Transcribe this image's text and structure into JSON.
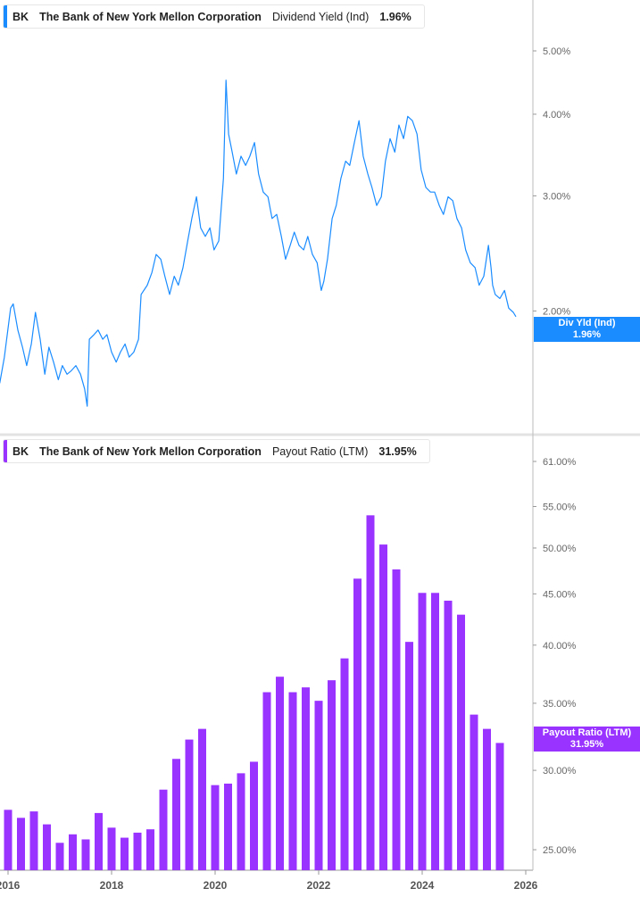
{
  "top_legend": {
    "ticker": "BK",
    "company": "The Bank of New York Mellon Corporation",
    "metric": "Dividend Yield (Ind)",
    "value": "1.96%"
  },
  "top_badge": {
    "label": "Div Yld (Ind)",
    "value": "1.96%"
  },
  "bottom_legend": {
    "ticker": "BK",
    "company": "The Bank of New York Mellon Corporation",
    "metric": "Payout Ratio (LTM)",
    "value": "31.95%"
  },
  "bottom_badge": {
    "label": "Payout Ratio (LTM)",
    "value": "31.95%"
  },
  "colors": {
    "yield": "#1a8cff",
    "payout": "#9933ff"
  },
  "chart_data": [
    {
      "type": "line",
      "title": "Dividend Yield (Ind)",
      "yscale": "log",
      "ylim": [
        1.35,
        5.5
      ],
      "yticks": [
        "5.00%",
        "4.00%",
        "3.00%",
        "2.00%"
      ],
      "ytick_values": [
        5,
        4,
        3,
        2
      ],
      "grid": false,
      "legend": "top-left",
      "points": [
        [
          2015.84,
          1.55
        ],
        [
          2015.93,
          1.7
        ],
        [
          2016.05,
          2.02
        ],
        [
          2016.1,
          2.05
        ],
        [
          2016.19,
          1.87
        ],
        [
          2016.28,
          1.76
        ],
        [
          2016.36,
          1.65
        ],
        [
          2016.45,
          1.78
        ],
        [
          2016.53,
          1.99
        ],
        [
          2016.62,
          1.81
        ],
        [
          2016.71,
          1.6
        ],
        [
          2016.79,
          1.76
        ],
        [
          2016.88,
          1.67
        ],
        [
          2016.97,
          1.57
        ],
        [
          2017.05,
          1.65
        ],
        [
          2017.14,
          1.6
        ],
        [
          2017.22,
          1.62
        ],
        [
          2017.31,
          1.65
        ],
        [
          2017.4,
          1.6
        ],
        [
          2017.48,
          1.52
        ],
        [
          2017.53,
          1.43
        ],
        [
          2017.57,
          1.81
        ],
        [
          2017.66,
          1.84
        ],
        [
          2017.74,
          1.87
        ],
        [
          2017.83,
          1.81
        ],
        [
          2017.91,
          1.84
        ],
        [
          2018.0,
          1.73
        ],
        [
          2018.09,
          1.67
        ],
        [
          2018.17,
          1.73
        ],
        [
          2018.26,
          1.78
        ],
        [
          2018.34,
          1.7
        ],
        [
          2018.43,
          1.73
        ],
        [
          2018.52,
          1.81
        ],
        [
          2018.57,
          2.12
        ],
        [
          2018.69,
          2.19
        ],
        [
          2018.78,
          2.29
        ],
        [
          2018.86,
          2.44
        ],
        [
          2018.95,
          2.4
        ],
        [
          2019.03,
          2.26
        ],
        [
          2019.12,
          2.12
        ],
        [
          2019.21,
          2.26
        ],
        [
          2019.29,
          2.19
        ],
        [
          2019.38,
          2.33
        ],
        [
          2019.47,
          2.56
        ],
        [
          2019.55,
          2.77
        ],
        [
          2019.64,
          2.99
        ],
        [
          2019.72,
          2.68
        ],
        [
          2019.81,
          2.6
        ],
        [
          2019.9,
          2.68
        ],
        [
          2019.98,
          2.48
        ],
        [
          2020.07,
          2.56
        ],
        [
          2020.16,
          3.19
        ],
        [
          2020.21,
          4.51
        ],
        [
          2020.26,
          3.73
        ],
        [
          2020.33,
          3.5
        ],
        [
          2020.41,
          3.24
        ],
        [
          2020.5,
          3.45
        ],
        [
          2020.59,
          3.34
        ],
        [
          2020.67,
          3.45
        ],
        [
          2020.76,
          3.62
        ],
        [
          2020.84,
          3.24
        ],
        [
          2020.93,
          3.04
        ],
        [
          2021.02,
          2.99
        ],
        [
          2021.1,
          2.77
        ],
        [
          2021.19,
          2.81
        ],
        [
          2021.28,
          2.6
        ],
        [
          2021.36,
          2.4
        ],
        [
          2021.45,
          2.52
        ],
        [
          2021.53,
          2.64
        ],
        [
          2021.62,
          2.52
        ],
        [
          2021.71,
          2.48
        ],
        [
          2021.79,
          2.6
        ],
        [
          2021.88,
          2.44
        ],
        [
          2021.97,
          2.37
        ],
        [
          2022.05,
          2.15
        ],
        [
          2022.1,
          2.22
        ],
        [
          2022.17,
          2.4
        ],
        [
          2022.26,
          2.77
        ],
        [
          2022.34,
          2.9
        ],
        [
          2022.43,
          3.19
        ],
        [
          2022.52,
          3.39
        ],
        [
          2022.6,
          3.34
        ],
        [
          2022.69,
          3.62
        ],
        [
          2022.78,
          3.91
        ],
        [
          2022.86,
          3.45
        ],
        [
          2022.95,
          3.24
        ],
        [
          2023.03,
          3.09
        ],
        [
          2023.12,
          2.9
        ],
        [
          2023.21,
          2.99
        ],
        [
          2023.29,
          3.39
        ],
        [
          2023.38,
          3.67
        ],
        [
          2023.47,
          3.5
        ],
        [
          2023.55,
          3.85
        ],
        [
          2023.64,
          3.67
        ],
        [
          2023.72,
          3.97
        ],
        [
          2023.81,
          3.91
        ],
        [
          2023.9,
          3.73
        ],
        [
          2023.98,
          3.29
        ],
        [
          2024.07,
          3.09
        ],
        [
          2024.16,
          3.04
        ],
        [
          2024.24,
          3.04
        ],
        [
          2024.33,
          2.9
        ],
        [
          2024.41,
          2.81
        ],
        [
          2024.5,
          2.99
        ],
        [
          2024.59,
          2.95
        ],
        [
          2024.67,
          2.77
        ],
        [
          2024.76,
          2.68
        ],
        [
          2024.84,
          2.48
        ],
        [
          2024.93,
          2.37
        ],
        [
          2025.02,
          2.33
        ],
        [
          2025.1,
          2.19
        ],
        [
          2025.19,
          2.26
        ],
        [
          2025.28,
          2.52
        ],
        [
          2025.33,
          2.33
        ],
        [
          2025.36,
          2.19
        ],
        [
          2025.41,
          2.12
        ],
        [
          2025.5,
          2.09
        ],
        [
          2025.59,
          2.15
        ],
        [
          2025.67,
          2.02
        ],
        [
          2025.76,
          1.99
        ],
        [
          2025.81,
          1.96
        ]
      ]
    },
    {
      "type": "bar",
      "title": "Payout Ratio (LTM)",
      "yscale": "log",
      "ylim": [
        24.0,
        64.0
      ],
      "yticks": [
        "61.00%",
        "55.00%",
        "50.00%",
        "45.00%",
        "40.00%",
        "35.00%",
        "30.00%",
        "25.00%"
      ],
      "ytick_values": [
        61,
        55,
        50,
        45,
        40,
        35,
        30,
        25
      ],
      "xticks": [
        "2016",
        "2018",
        "2020",
        "2022",
        "2024",
        "2026"
      ],
      "xtick_values": [
        2016,
        2018,
        2020,
        2022,
        2024,
        2026
      ],
      "xlim": [
        2015.85,
        2026.2
      ],
      "grid": false,
      "legend": "top-left",
      "start": 2016.0,
      "step": 0.25,
      "values": [
        27.4,
        26.9,
        27.3,
        26.5,
        25.4,
        25.9,
        25.6,
        27.2,
        26.3,
        25.7,
        26.0,
        26.2,
        28.7,
        30.8,
        32.2,
        33.0,
        29.0,
        29.1,
        29.8,
        30.6,
        35.9,
        37.2,
        35.9,
        36.3,
        35.2,
        36.9,
        38.8,
        46.6,
        53.9,
        50.4,
        47.6,
        40.3,
        45.1,
        45.1,
        44.3,
        42.9,
        34.1,
        33.0,
        31.95
      ]
    }
  ]
}
